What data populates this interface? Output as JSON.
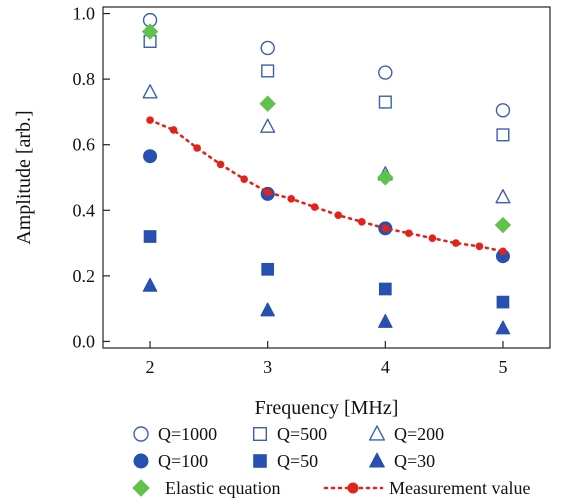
{
  "chart_data": {
    "type": "scatter",
    "xlabel": "Frequency [MHz]",
    "ylabel": "Amplitude [arb.]",
    "xlim": [
      1.6,
      5.4
    ],
    "ylim": [
      -0.02,
      1.02
    ],
    "x_ticks": [
      2,
      3,
      4,
      5
    ],
    "y_ticks": [
      0.0,
      0.2,
      0.4,
      0.6,
      0.8,
      1.0
    ],
    "grid": false,
    "legend_position": "bottom",
    "series": [
      {
        "name": "Q=1000",
        "marker": "circle-open",
        "color": "#3a5fb0",
        "x": [
          2,
          3,
          4,
          5
        ],
        "values": [
          0.98,
          0.895,
          0.82,
          0.705
        ]
      },
      {
        "name": "Q=500",
        "marker": "square-open",
        "color": "#3a5fb0",
        "x": [
          2,
          3,
          4,
          5
        ],
        "values": [
          0.915,
          0.825,
          0.73,
          0.63
        ]
      },
      {
        "name": "Q=200",
        "marker": "triangle-open",
        "color": "#3a5fb0",
        "x": [
          2,
          3,
          4,
          5
        ],
        "values": [
          0.76,
          0.655,
          0.51,
          0.44
        ]
      },
      {
        "name": "Q=100",
        "marker": "circle-filled",
        "color": "#2750b0",
        "x": [
          2,
          3,
          4,
          5
        ],
        "values": [
          0.565,
          0.45,
          0.345,
          0.26
        ]
      },
      {
        "name": "Q=50",
        "marker": "square-filled",
        "color": "#2750b0",
        "x": [
          2,
          3,
          4,
          5
        ],
        "values": [
          0.32,
          0.22,
          0.16,
          0.12
        ]
      },
      {
        "name": "Q=30",
        "marker": "triangle-filled",
        "color": "#2750b0",
        "x": [
          2,
          3,
          4,
          5
        ],
        "values": [
          0.17,
          0.095,
          0.06,
          0.04
        ]
      },
      {
        "name": "Elastic equation",
        "marker": "diamond-filled",
        "color": "#5fc24a",
        "x": [
          2,
          3,
          4,
          5
        ],
        "values": [
          0.945,
          0.725,
          0.5,
          0.355
        ]
      },
      {
        "name": "Measurement value",
        "marker": "dotted-line-dot",
        "color": "#e2231a",
        "x": [
          2.0,
          2.2,
          2.4,
          2.6,
          2.8,
          3.0,
          3.2,
          3.4,
          3.6,
          3.8,
          4.0,
          4.2,
          4.4,
          4.6,
          4.8,
          5.0
        ],
        "values": [
          0.675,
          0.645,
          0.59,
          0.54,
          0.495,
          0.455,
          0.435,
          0.41,
          0.385,
          0.365,
          0.345,
          0.33,
          0.315,
          0.3,
          0.29,
          0.275
        ]
      }
    ]
  }
}
